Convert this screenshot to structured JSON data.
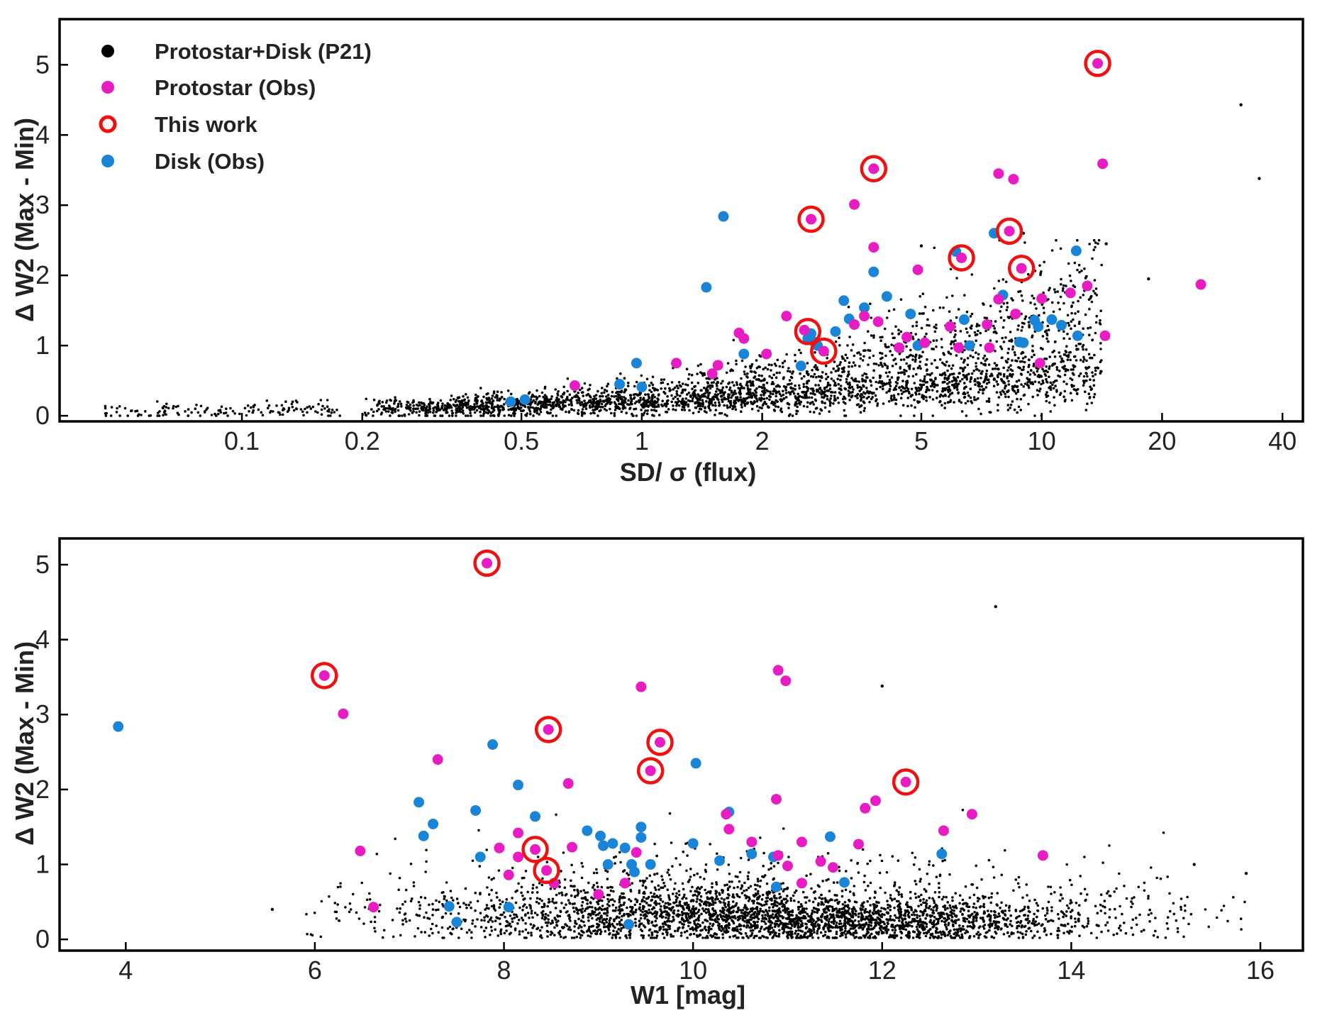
{
  "colors": {
    "model": "#000000",
    "protostar": "#e81cc3",
    "disk": "#1a85d6",
    "this_work": "#ee1111"
  },
  "legend": {
    "items": [
      {
        "key": "model",
        "label": "Protostar+Disk (P21)",
        "marker": "small-dot"
      },
      {
        "key": "protostar",
        "label": "Protostar (Obs)",
        "marker": "filled-circle"
      },
      {
        "key": "this_work",
        "label": "This work",
        "marker": "open-ring"
      },
      {
        "key": "disk",
        "label": "Disk (Obs)",
        "marker": "filled-circle"
      }
    ]
  },
  "chart_data": [
    {
      "type": "scatter",
      "panel": "top",
      "xscale": "log",
      "xlabel": "SD/ σ (flux)",
      "ylabel": "Δ W2 (Max - Min)",
      "xlim": [
        0.035,
        45
      ],
      "ylim": [
        -0.08,
        5.65
      ],
      "xticks": [
        0.1,
        0.2,
        0.5,
        1,
        2,
        5,
        10,
        20,
        40
      ],
      "xtick_labels": [
        "0.1",
        "0.2",
        "0.5",
        "1",
        "2",
        "5",
        "10",
        "20",
        "40"
      ],
      "yticks": [
        0,
        1,
        2,
        3,
        4,
        5
      ],
      "ytick_labels": [
        "0",
        "1",
        "2",
        "3",
        "4",
        "5"
      ],
      "series": [
        {
          "name": "Protostar+Disk (P21)",
          "key": "model",
          "note": "~5000 simulated points (dense cloud, procedurally reproduced)",
          "outliers": [
            [
              31.5,
              4.43
            ],
            [
              35.0,
              3.38
            ],
            [
              18.5,
              1.95
            ],
            [
              14.5,
              2.45
            ],
            [
              9.0,
              2.6
            ],
            [
              5.0,
              2.42
            ]
          ]
        },
        {
          "name": "Protostar (Obs)",
          "key": "protostar",
          "points": [
            [
              13.8,
              5.02
            ],
            [
              14.2,
              3.59
            ],
            [
              3.8,
              3.52
            ],
            [
              7.8,
              3.45
            ],
            [
              8.5,
              3.37
            ],
            [
              3.4,
              3.01
            ],
            [
              2.65,
              2.8
            ],
            [
              8.3,
              2.63
            ],
            [
              3.8,
              2.4
            ],
            [
              6.3,
              2.25
            ],
            [
              8.9,
              2.1
            ],
            [
              4.9,
              2.08
            ],
            [
              25.0,
              1.87
            ],
            [
              13.0,
              1.85
            ],
            [
              11.8,
              1.75
            ],
            [
              10.0,
              1.67
            ],
            [
              7.8,
              1.66
            ],
            [
              3.6,
              1.42
            ],
            [
              2.3,
              1.42
            ],
            [
              3.9,
              1.34
            ],
            [
              8.6,
              1.45
            ],
            [
              7.3,
              1.3
            ],
            [
              5.9,
              1.27
            ],
            [
              3.4,
              1.3
            ],
            [
              1.75,
              1.18
            ],
            [
              1.8,
              1.1
            ],
            [
              4.6,
              1.12
            ],
            [
              14.4,
              1.14
            ],
            [
              2.55,
              1.22
            ],
            [
              2.85,
              0.92
            ],
            [
              4.4,
              0.97
            ],
            [
              6.2,
              0.97
            ],
            [
              7.4,
              0.97
            ],
            [
              2.05,
              0.88
            ],
            [
              1.22,
              0.75
            ],
            [
              1.55,
              0.72
            ],
            [
              1.5,
              0.6
            ],
            [
              9.9,
              0.75
            ],
            [
              0.68,
              0.43
            ],
            [
              5.1,
              1.04
            ]
          ]
        },
        {
          "name": "This work",
          "key": "this_work",
          "points": [
            [
              13.8,
              5.02
            ],
            [
              3.8,
              3.52
            ],
            [
              2.65,
              2.8
            ],
            [
              8.3,
              2.63
            ],
            [
              6.3,
              2.25
            ],
            [
              8.9,
              2.1
            ],
            [
              2.6,
              1.2
            ],
            [
              2.85,
              0.92
            ]
          ]
        },
        {
          "name": "Disk (Obs)",
          "key": "disk",
          "points": [
            [
              1.6,
              2.84
            ],
            [
              7.6,
              2.6
            ],
            [
              12.2,
              2.35
            ],
            [
              6.1,
              2.34
            ],
            [
              3.8,
              2.05
            ],
            [
              1.45,
              1.83
            ],
            [
              8.0,
              1.72
            ],
            [
              4.1,
              1.7
            ],
            [
              3.2,
              1.64
            ],
            [
              3.6,
              1.54
            ],
            [
              4.7,
              1.45
            ],
            [
              9.6,
              1.36
            ],
            [
              10.6,
              1.37
            ],
            [
              11.2,
              1.29
            ],
            [
              9.8,
              1.27
            ],
            [
              3.05,
              1.2
            ],
            [
              6.4,
              1.37
            ],
            [
              3.3,
              1.38
            ],
            [
              2.75,
              1.0
            ],
            [
              2.6,
              1.1
            ],
            [
              4.9,
              1.0
            ],
            [
              6.6,
              1.0
            ],
            [
              8.8,
              1.05
            ],
            [
              9.0,
              1.04
            ],
            [
              12.3,
              1.14
            ],
            [
              2.5,
              0.71
            ],
            [
              1.8,
              0.88
            ],
            [
              0.97,
              0.75
            ],
            [
              0.88,
              0.45
            ],
            [
              1.0,
              0.41
            ],
            [
              0.47,
              0.2
            ],
            [
              0.51,
              0.23
            ],
            [
              2.65,
              1.17
            ],
            [
              2.7,
              1.05
            ]
          ]
        }
      ]
    },
    {
      "type": "scatter",
      "panel": "bottom",
      "xscale": "linear",
      "xlabel": "W1 [mag]",
      "ylabel": "Δ W2 (Max - Min)",
      "xlim": [
        3.3,
        16.45
      ],
      "ylim": [
        -0.15,
        5.35
      ],
      "xticks": [
        4,
        6,
        8,
        10,
        12,
        14,
        16
      ],
      "xtick_labels": [
        "4",
        "6",
        "8",
        "10",
        "12",
        "14",
        "16"
      ],
      "yticks": [
        0,
        1,
        2,
        3,
        4,
        5
      ],
      "ytick_labels": [
        "0",
        "1",
        "2",
        "3",
        "4",
        "5"
      ],
      "series": [
        {
          "name": "Protostar+Disk (P21)",
          "key": "model",
          "note": "~5000 simulated points (dense cloud, procedurally reproduced)",
          "outliers": [
            [
              13.2,
              4.44
            ],
            [
              12.0,
              3.38
            ],
            [
              5.55,
              0.4
            ],
            [
              15.85,
              0.88
            ],
            [
              15.3,
              1.0
            ]
          ]
        },
        {
          "name": "Protostar (Obs)",
          "key": "protostar",
          "points": [
            [
              7.82,
              5.02
            ],
            [
              10.9,
              3.59
            ],
            [
              6.1,
              3.52
            ],
            [
              10.98,
              3.45
            ],
            [
              9.45,
              3.37
            ],
            [
              6.3,
              3.01
            ],
            [
              8.47,
              2.8
            ],
            [
              9.65,
              2.63
            ],
            [
              7.3,
              2.4
            ],
            [
              9.55,
              2.25
            ],
            [
              12.25,
              2.1
            ],
            [
              8.68,
              2.08
            ],
            [
              10.88,
              1.87
            ],
            [
              11.93,
              1.85
            ],
            [
              11.82,
              1.75
            ],
            [
              12.95,
              1.67
            ],
            [
              10.35,
              1.67
            ],
            [
              12.65,
              1.45
            ],
            [
              10.38,
              1.47
            ],
            [
              8.15,
              1.42
            ],
            [
              7.95,
              1.22
            ],
            [
              8.72,
              1.23
            ],
            [
              11.15,
              1.3
            ],
            [
              10.62,
              1.3
            ],
            [
              11.75,
              1.27
            ],
            [
              9.4,
              1.16
            ],
            [
              10.9,
              1.12
            ],
            [
              13.7,
              1.12
            ],
            [
              11.35,
              1.04
            ],
            [
              11.0,
              0.98
            ],
            [
              11.48,
              0.96
            ],
            [
              6.48,
              1.18
            ],
            [
              8.33,
              1.2
            ],
            [
              8.45,
              0.92
            ],
            [
              8.05,
              0.86
            ],
            [
              8.53,
              0.75
            ],
            [
              9.28,
              0.75
            ],
            [
              11.15,
              0.75
            ],
            [
              9.0,
              0.6
            ],
            [
              6.62,
              0.43
            ],
            [
              8.15,
              1.1
            ]
          ]
        },
        {
          "name": "This work",
          "key": "this_work",
          "points": [
            [
              7.82,
              5.02
            ],
            [
              6.1,
              3.52
            ],
            [
              8.47,
              2.8
            ],
            [
              9.65,
              2.63
            ],
            [
              9.55,
              2.25
            ],
            [
              12.25,
              2.1
            ],
            [
              8.33,
              1.2
            ],
            [
              8.45,
              0.92
            ]
          ]
        },
        {
          "name": "Disk (Obs)",
          "key": "disk",
          "points": [
            [
              3.92,
              2.84
            ],
            [
              7.88,
              2.6
            ],
            [
              10.03,
              2.35
            ],
            [
              8.15,
              2.06
            ],
            [
              7.1,
              1.83
            ],
            [
              7.7,
              1.72
            ],
            [
              10.38,
              1.7
            ],
            [
              8.33,
              1.64
            ],
            [
              7.25,
              1.54
            ],
            [
              9.45,
              1.5
            ],
            [
              8.88,
              1.45
            ],
            [
              9.02,
              1.38
            ],
            [
              9.45,
              1.36
            ],
            [
              11.45,
              1.37
            ],
            [
              7.15,
              1.38
            ],
            [
              9.15,
              1.28
            ],
            [
              10.0,
              1.28
            ],
            [
              9.28,
              1.22
            ],
            [
              7.75,
              1.1
            ],
            [
              9.05,
              1.25
            ],
            [
              10.62,
              1.14
            ],
            [
              12.63,
              1.14
            ],
            [
              10.28,
              1.05
            ],
            [
              9.1,
              1.0
            ],
            [
              9.35,
              1.0
            ],
            [
              9.55,
              1.0
            ],
            [
              9.38,
              0.9
            ],
            [
              10.88,
              0.7
            ],
            [
              11.6,
              0.76
            ],
            [
              10.85,
              1.1
            ],
            [
              7.42,
              0.44
            ],
            [
              8.05,
              0.43
            ],
            [
              7.5,
              0.23
            ],
            [
              9.32,
              0.2
            ]
          ]
        }
      ]
    }
  ]
}
